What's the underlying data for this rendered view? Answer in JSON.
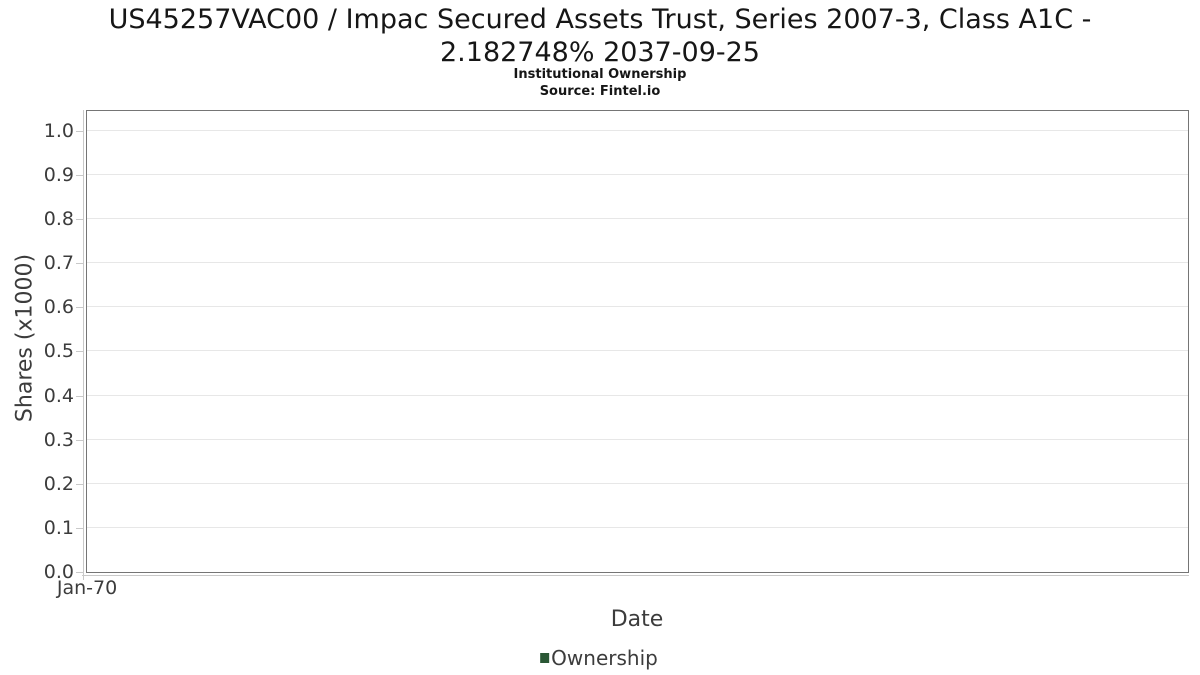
{
  "chart_data": {
    "type": "line",
    "title": "US45257VAC00 / Impac Secured Assets Trust, Series 2007-3, Class A1C - 2.182748% 2037-09-25",
    "title_lines": [
      "US45257VAC00 / Impac Secured Assets Trust, Series 2007-3, Class A1C -",
      "2.182748% 2037-09-25"
    ],
    "subtitle": "Institutional Ownership",
    "source": "Source: Fintel.io",
    "xlabel": "Date",
    "ylabel": "Shares (x1000)",
    "x_ticks": [
      "Jan-70"
    ],
    "y_ticks": [
      "0.0",
      "0.1",
      "0.2",
      "0.3",
      "0.4",
      "0.5",
      "0.6",
      "0.7",
      "0.8",
      "0.9",
      "1.0"
    ],
    "ylim": [
      0,
      1.045
    ],
    "grid": true,
    "legend": {
      "position": "bottom-center",
      "entries": [
        {
          "label": "Ownership",
          "color": "#2a5735"
        }
      ]
    },
    "series": [
      {
        "name": "Ownership",
        "color": "#2a5735",
        "x": [],
        "values": []
      }
    ]
  },
  "colors": {
    "background": "#ffffff",
    "title_text": "#161616",
    "axis_text": "#3c3c3c",
    "plot_border": "#757575",
    "axis_line": "#c9c9c9",
    "gridline": "#e7e7e7",
    "legend_marker": "#2a5735"
  }
}
